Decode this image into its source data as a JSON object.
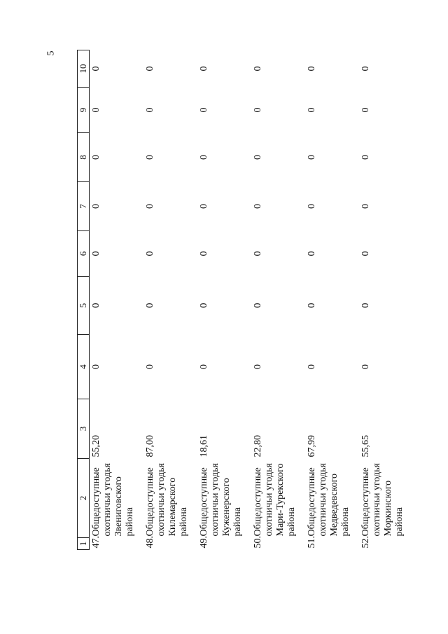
{
  "page_number": "5",
  "table": {
    "header": [
      "1",
      "2",
      "3",
      "4",
      "5",
      "6",
      "7",
      "8",
      "9",
      "10"
    ],
    "rows": [
      [
        "47.",
        "Общедоступные охотничьи угодья Звениговского района",
        "55,20",
        "0",
        "0",
        "0",
        "0",
        "0",
        "0",
        "0"
      ],
      [
        "48.",
        "Общедоступные охотничьи угодья Килемарского района",
        "87,00",
        "0",
        "0",
        "0",
        "0",
        "0",
        "0",
        "0"
      ],
      [
        "49.",
        "Общедоступные охотничьи угодья Куженерского района",
        "18,61",
        "0",
        "0",
        "0",
        "0",
        "0",
        "0",
        "0"
      ],
      [
        "50.",
        "Общедоступные охотничьи угодья Мари-Турекского района",
        "22,80",
        "0",
        "0",
        "0",
        "0",
        "0",
        "0",
        "0"
      ],
      [
        "51.",
        "Общедоступные охотничьи угодья Медведевского района",
        "67,99",
        "0",
        "0",
        "0",
        "0",
        "0",
        "0",
        "0"
      ],
      [
        "52.",
        "Общедоступные охотничьи угодья Моркинского района",
        "55,65",
        "0",
        "0",
        "0",
        "0",
        "0",
        "0",
        "0"
      ]
    ]
  }
}
